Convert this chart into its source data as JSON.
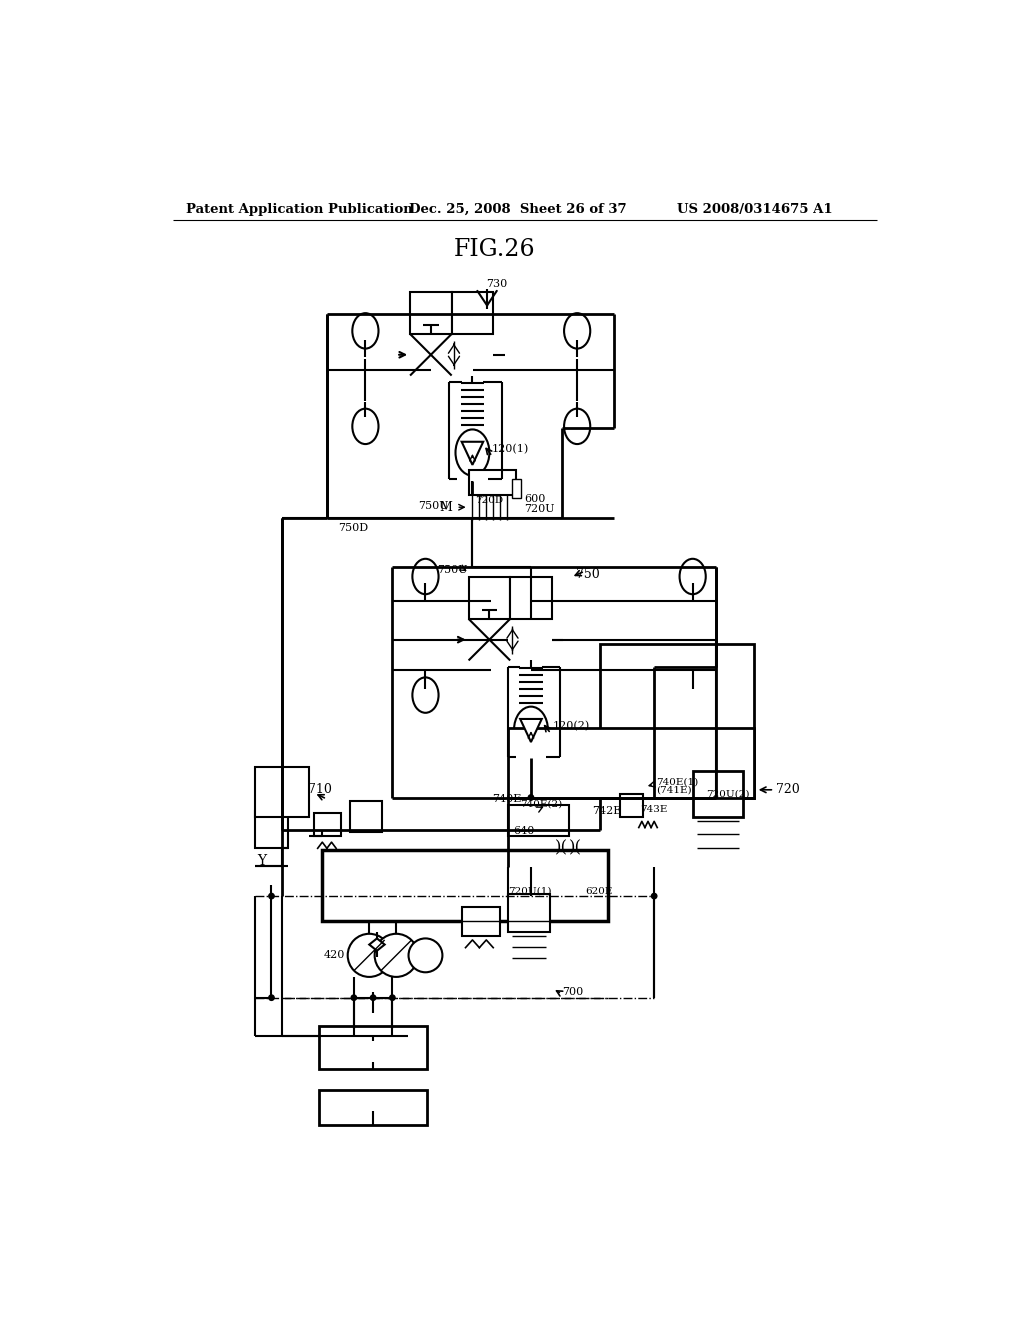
{
  "header_left": "Patent Application Publication",
  "header_center": "Dec. 25, 2008  Sheet 26 of 37",
  "header_right": "US 2008/0314675 A1",
  "title": "FIG.26",
  "bg_color": "#ffffff"
}
